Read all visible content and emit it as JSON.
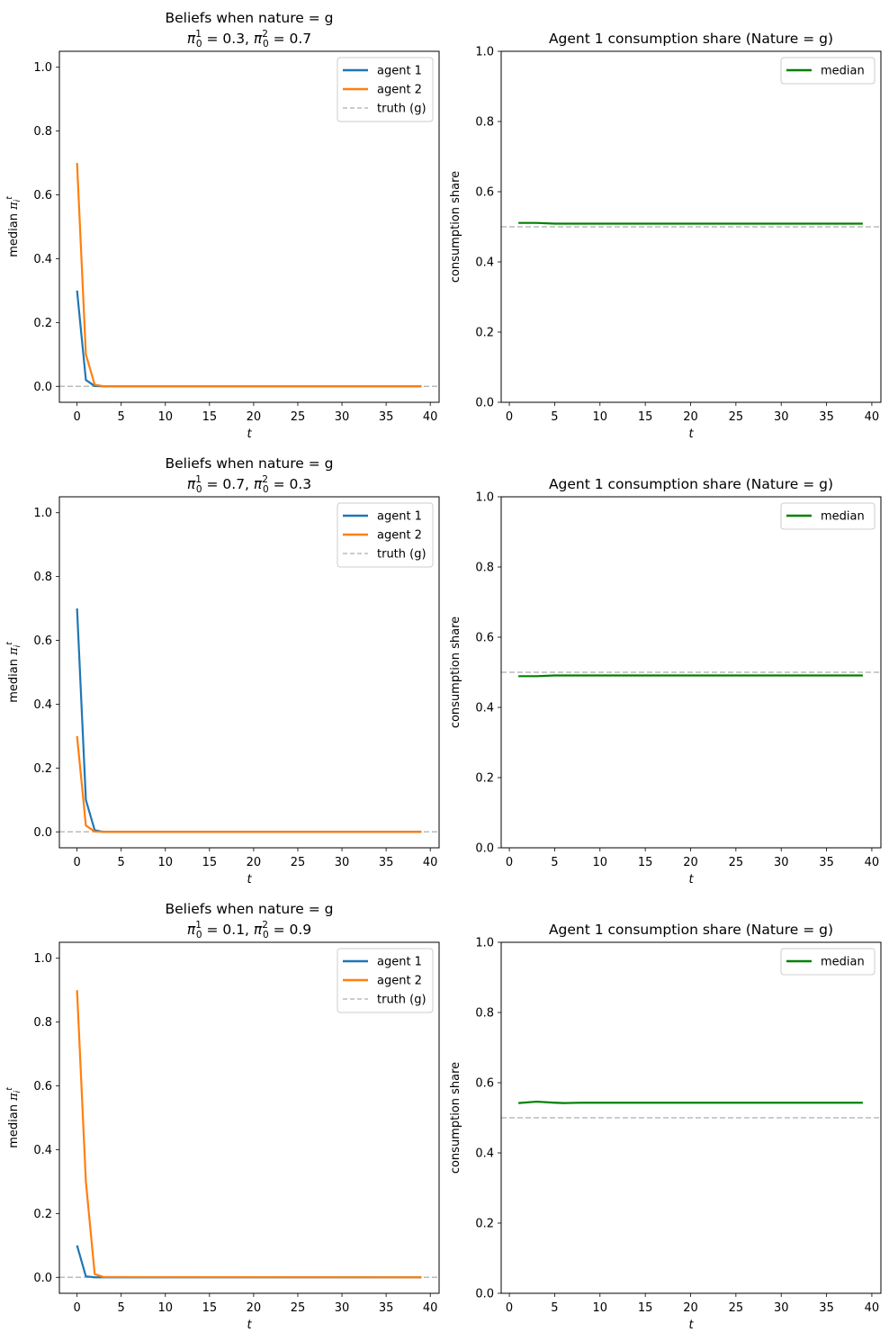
{
  "colors": {
    "agent1": "#1f77b4",
    "agent2": "#ff7f0e",
    "truth": "#bbbbbb",
    "median": "#008000"
  },
  "chart_data": [
    {
      "type": "line",
      "title": "Beliefs when nature = g",
      "subtitle": {
        "a_val": "0.3",
        "b_val": "0.7"
      },
      "xlabel": "t",
      "ylabel": "median π",
      "xlim": [
        -2,
        41
      ],
      "ylim": [
        -0.05,
        1.05
      ],
      "xticks": [
        0,
        5,
        10,
        15,
        20,
        25,
        30,
        35,
        40
      ],
      "yticks": [
        0.0,
        0.2,
        0.4,
        0.6,
        0.8,
        1.0
      ],
      "legend": "top-right",
      "hline": 0.0,
      "series": [
        {
          "name": "agent 1",
          "color": "agent1",
          "x": [
            0,
            1,
            2,
            3,
            39
          ],
          "values": [
            0.3,
            0.02,
            0.001,
            0.0,
            0.0
          ]
        },
        {
          "name": "agent 2",
          "color": "agent2",
          "x": [
            0,
            1,
            2,
            3,
            39
          ],
          "values": [
            0.7,
            0.1,
            0.005,
            0.0,
            0.0
          ]
        },
        {
          "name": "truth (g)",
          "color": "truth",
          "dashed": true
        }
      ]
    },
    {
      "type": "line",
      "title": "Agent 1 consumption share (Nature = g)",
      "xlabel": "t",
      "ylabel": "consumption share",
      "xlim": [
        -0.9,
        41
      ],
      "ylim": [
        0,
        1.0
      ],
      "xticks": [
        0,
        5,
        10,
        15,
        20,
        25,
        30,
        35,
        40
      ],
      "yticks": [
        0.0,
        0.2,
        0.4,
        0.6,
        0.8,
        1.0
      ],
      "legend": "top-right",
      "hline": 0.5,
      "series": [
        {
          "name": "median",
          "color": "median",
          "x": [
            1,
            3,
            5,
            7,
            39
          ],
          "values": [
            0.511,
            0.511,
            0.509,
            0.509,
            0.509
          ]
        }
      ]
    },
    {
      "type": "line",
      "title": "Beliefs when nature = g",
      "subtitle": {
        "a_val": "0.7",
        "b_val": "0.3"
      },
      "xlabel": "t",
      "ylabel": "median π",
      "xlim": [
        -2,
        41
      ],
      "ylim": [
        -0.05,
        1.05
      ],
      "xticks": [
        0,
        5,
        10,
        15,
        20,
        25,
        30,
        35,
        40
      ],
      "yticks": [
        0.0,
        0.2,
        0.4,
        0.6,
        0.8,
        1.0
      ],
      "legend": "top-right",
      "hline": 0.0,
      "series": [
        {
          "name": "agent 1",
          "color": "agent1",
          "x": [
            0,
            1,
            2,
            3,
            39
          ],
          "values": [
            0.7,
            0.1,
            0.005,
            0.0,
            0.0
          ]
        },
        {
          "name": "agent 2",
          "color": "agent2",
          "x": [
            0,
            1,
            2,
            3,
            39
          ],
          "values": [
            0.3,
            0.02,
            0.001,
            0.0,
            0.0
          ]
        },
        {
          "name": "truth (g)",
          "color": "truth",
          "dashed": true
        }
      ]
    },
    {
      "type": "line",
      "title": "Agent 1 consumption share (Nature = g)",
      "xlabel": "t",
      "ylabel": "consumption share",
      "xlim": [
        -0.9,
        41
      ],
      "ylim": [
        0,
        1.0
      ],
      "xticks": [
        0,
        5,
        10,
        15,
        20,
        25,
        30,
        35,
        40
      ],
      "yticks": [
        0.0,
        0.2,
        0.4,
        0.6,
        0.8,
        1.0
      ],
      "legend": "top-right",
      "hline": 0.5,
      "series": [
        {
          "name": "median",
          "color": "median",
          "x": [
            1,
            3,
            5,
            7,
            39
          ],
          "values": [
            0.489,
            0.489,
            0.491,
            0.491,
            0.491
          ]
        }
      ]
    },
    {
      "type": "line",
      "title": "Beliefs when nature = g",
      "subtitle": {
        "a_val": "0.1",
        "b_val": "0.9"
      },
      "xlabel": "t",
      "ylabel": "median π",
      "xlim": [
        -2,
        41
      ],
      "ylim": [
        -0.05,
        1.05
      ],
      "xticks": [
        0,
        5,
        10,
        15,
        20,
        25,
        30,
        35,
        40
      ],
      "yticks": [
        0.0,
        0.2,
        0.4,
        0.6,
        0.8,
        1.0
      ],
      "legend": "top-right",
      "hline": 0.0,
      "series": [
        {
          "name": "agent 1",
          "color": "agent1",
          "x": [
            0,
            1,
            2,
            3,
            39
          ],
          "values": [
            0.1,
            0.003,
            0.0,
            0.0,
            0.0
          ]
        },
        {
          "name": "agent 2",
          "color": "agent2",
          "x": [
            0,
            1,
            2,
            3,
            39
          ],
          "values": [
            0.9,
            0.3,
            0.01,
            0.001,
            0.0
          ]
        },
        {
          "name": "truth (g)",
          "color": "truth",
          "dashed": true
        }
      ]
    },
    {
      "type": "line",
      "title": "Agent 1 consumption share (Nature = g)",
      "xlabel": "t",
      "ylabel": "consumption share",
      "xlim": [
        -0.9,
        41
      ],
      "ylim": [
        0,
        1.0
      ],
      "xticks": [
        0,
        5,
        10,
        15,
        20,
        25,
        30,
        35,
        40
      ],
      "yticks": [
        0.0,
        0.2,
        0.4,
        0.6,
        0.8,
        1.0
      ],
      "legend": "top-right",
      "hline": 0.5,
      "series": [
        {
          "name": "median",
          "color": "median",
          "x": [
            1,
            3,
            5,
            6,
            8,
            39
          ],
          "values": [
            0.542,
            0.546,
            0.543,
            0.542,
            0.543,
            0.543
          ]
        }
      ]
    }
  ]
}
